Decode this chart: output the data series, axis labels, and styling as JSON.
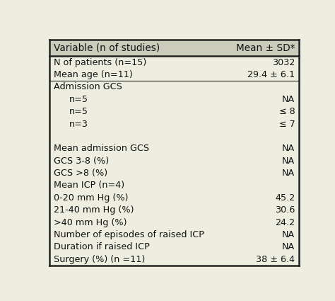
{
  "header": [
    "Variable (n of studies)",
    "Mean ± SD*"
  ],
  "rows": [
    {
      "label": "N of patients (n=15)",
      "value": "3032",
      "indent": 0
    },
    {
      "label": "Mean age (n=11)",
      "value": "29.4 ± 6.1",
      "indent": 0
    },
    {
      "label": "Admission GCS",
      "value": "",
      "indent": 0
    },
    {
      "label": "n=5",
      "value": "NA",
      "indent": 1
    },
    {
      "label": "n=5",
      "value": "≤ 8",
      "indent": 1
    },
    {
      "label": "n=3",
      "value": "≤ 7",
      "indent": 1
    },
    {
      "label": "",
      "value": "",
      "indent": 0
    },
    {
      "label": "Mean admission GCS",
      "value": "NA",
      "indent": 0
    },
    {
      "label": "GCS 3-8 (%)",
      "value": "NA",
      "indent": 0
    },
    {
      "label": "GCS >8 (%)",
      "value": "NA",
      "indent": 0
    },
    {
      "label": "Mean ICP (n=4)",
      "value": "",
      "indent": 0
    },
    {
      "label": "0-20 mm Hg (%)",
      "value": "45.2",
      "indent": 0
    },
    {
      "label": "21-40 mm Hg (%)",
      "value": "30.6",
      "indent": 0
    },
    {
      "label": ">40 mm Hg (%)",
      "value": "24.2",
      "indent": 0
    },
    {
      "label": "Number of episodes of raised ICP",
      "value": "NA",
      "indent": 0
    },
    {
      "label": "Duration if raised ICP",
      "value": "NA",
      "indent": 0
    },
    {
      "label": "Surgery (%) (n =11)",
      "value": "38 ± 6.4",
      "indent": 0
    }
  ],
  "bg_color": "#eeeee0",
  "header_bg": "#ccccbc",
  "border_color": "#222222",
  "text_color": "#111111",
  "font_size": 9.2,
  "header_font_size": 9.8,
  "indent_size": 0.06
}
